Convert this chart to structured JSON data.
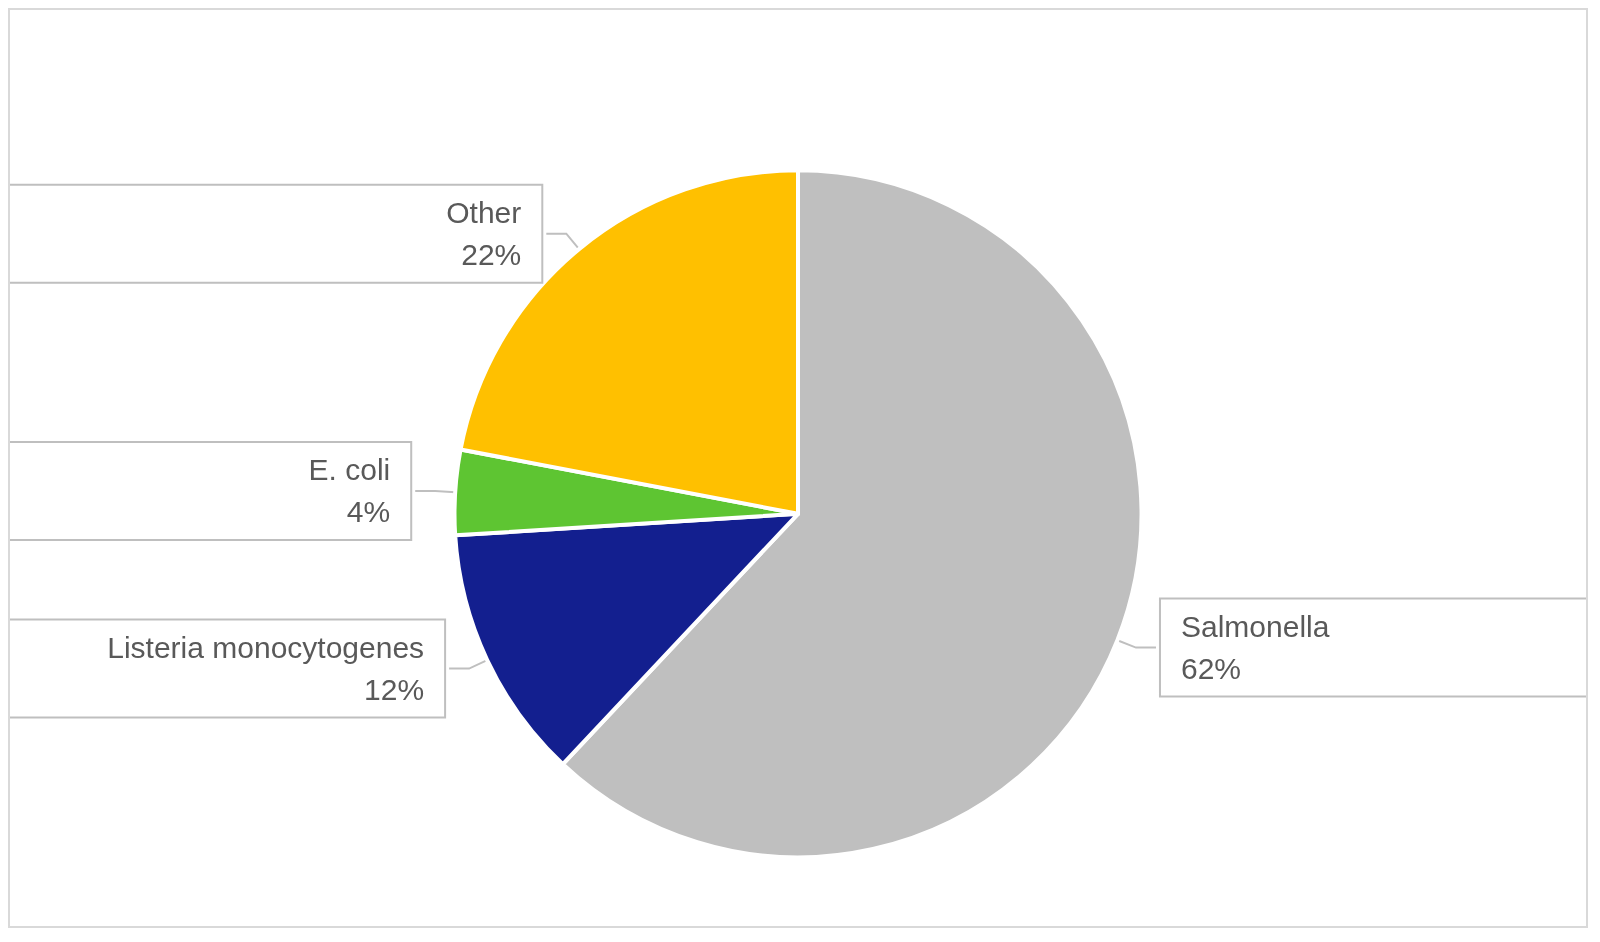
{
  "chart_data": {
    "type": "pie",
    "categories": [
      "Salmonella",
      "Listeria monocytogenes",
      "E. coli",
      "Other"
    ],
    "values": [
      62,
      12,
      4,
      22
    ],
    "value_labels": [
      "62%",
      "12%",
      "4%",
      "22%"
    ],
    "colors": [
      "#bfbfbf",
      "#131f8f",
      "#5ec532",
      "#ffc000"
    ]
  }
}
